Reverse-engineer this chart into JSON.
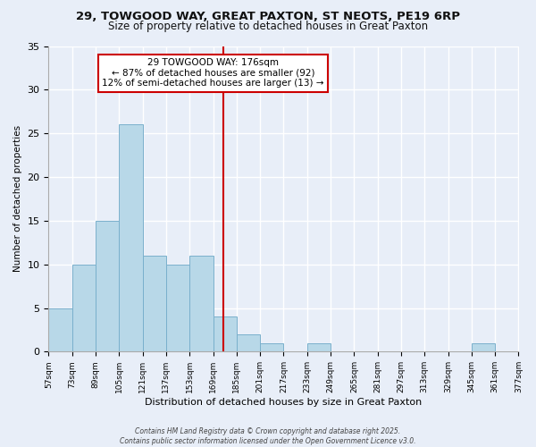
{
  "title1": "29, TOWGOOD WAY, GREAT PAXTON, ST NEOTS, PE19 6RP",
  "title2": "Size of property relative to detached houses in Great Paxton",
  "xlabel": "Distribution of detached houses by size in Great Paxton",
  "ylabel": "Number of detached properties",
  "bins_left": [
    57,
    73,
    89,
    105,
    121,
    137,
    153,
    169,
    185,
    201,
    217,
    233,
    249,
    265,
    281,
    297,
    313,
    329,
    345,
    361
  ],
  "bin_width": 16,
  "counts": [
    5,
    10,
    15,
    26,
    11,
    10,
    11,
    4,
    2,
    1,
    0,
    1,
    0,
    0,
    0,
    0,
    0,
    0,
    1,
    0
  ],
  "xtick_values": [
    57,
    73,
    89,
    105,
    121,
    137,
    153,
    169,
    185,
    201,
    217,
    233,
    249,
    265,
    281,
    297,
    313,
    329,
    345,
    361,
    377
  ],
  "bar_color": "#b8d8e8",
  "bar_edgecolor": "#7ab0cc",
  "marker_x": 176,
  "marker_color": "#cc0000",
  "annotation_title": "29 TOWGOOD WAY: 176sqm",
  "annotation_line1": "← 87% of detached houses are smaller (92)",
  "annotation_line2": "12% of semi-detached houses are larger (13) →",
  "annotation_box_facecolor": "#ffffff",
  "annotation_box_edgecolor": "#cc0000",
  "ylim": [
    0,
    35
  ],
  "yticks": [
    0,
    5,
    10,
    15,
    20,
    25,
    30,
    35
  ],
  "xlim_left": 57,
  "xlim_right": 377,
  "background_color": "#e8eef8",
  "grid_color": "#ffffff",
  "title1_fontsize": 9.5,
  "title2_fontsize": 8.5,
  "xlabel_fontsize": 8,
  "ylabel_fontsize": 7.5,
  "ytick_fontsize": 8,
  "xtick_fontsize": 6.5,
  "annot_fontsize": 7.5,
  "footer1": "Contains HM Land Registry data © Crown copyright and database right 2025.",
  "footer2": "Contains public sector information licensed under the Open Government Licence v3.0.",
  "footer_fontsize": 5.5
}
